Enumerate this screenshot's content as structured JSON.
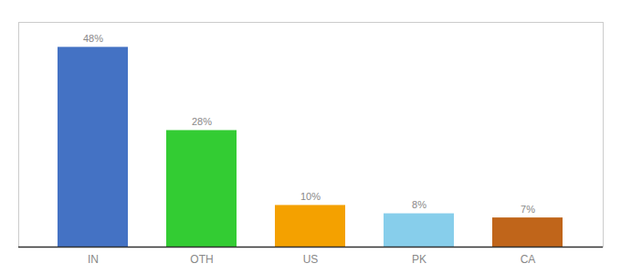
{
  "chart_data": {
    "type": "bar",
    "categories": [
      "IN",
      "OTH",
      "US",
      "PK",
      "CA"
    ],
    "values": [
      48,
      28,
      10,
      8,
      7
    ],
    "value_labels": [
      "48%",
      "28%",
      "10%",
      "8%",
      "7%"
    ],
    "colors": [
      "#4472c4",
      "#33cc33",
      "#f4a100",
      "#87ceeb",
      "#c0651a"
    ],
    "ylim": [
      0,
      54
    ],
    "grid": false,
    "data_labels": true,
    "tick_labels": "x"
  }
}
